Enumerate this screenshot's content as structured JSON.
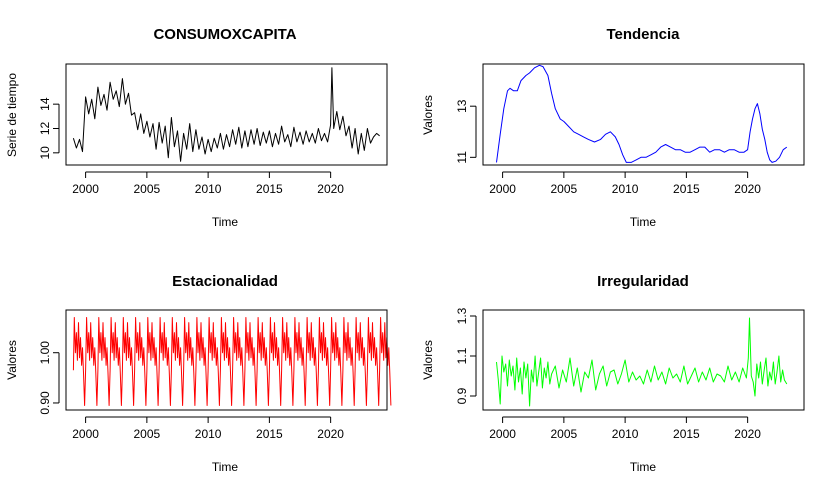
{
  "chart_data": [
    {
      "type": "line",
      "title": "CONSUMOXCAPITA",
      "xlabel": "Time",
      "ylabel": "Serie de tiempo",
      "color": "#000000",
      "xlim": [
        1998.4,
        2024.6
      ],
      "ylim": [
        9.0,
        17.3
      ],
      "xticks": [
        2000,
        2005,
        2010,
        2015,
        2020
      ],
      "yticks": [
        10,
        12,
        14
      ],
      "grid": false,
      "series": [
        {
          "x": [
            1999.0,
            1999.25,
            1999.5,
            1999.75,
            2000.0,
            2000.25,
            2000.5,
            2000.75,
            2001.0,
            2001.25,
            2001.5,
            2001.75,
            2002.0,
            2002.25,
            2002.5,
            2002.75,
            2003.0,
            2003.25,
            2003.5,
            2003.75,
            2004.0,
            2004.25,
            2004.5,
            2004.75,
            2005.0,
            2005.25,
            2005.5,
            2005.75,
            2006.0,
            2006.25,
            2006.5,
            2006.75,
            2007.0,
            2007.25,
            2007.5,
            2007.75,
            2008.0,
            2008.25,
            2008.5,
            2008.75,
            2009.0,
            2009.25,
            2009.5,
            2009.75,
            2010.0,
            2010.25,
            2010.5,
            2010.75,
            2011.0,
            2011.25,
            2011.5,
            2011.75,
            2012.0,
            2012.25,
            2012.5,
            2012.75,
            2013.0,
            2013.25,
            2013.5,
            2013.75,
            2014.0,
            2014.25,
            2014.5,
            2014.75,
            2015.0,
            2015.25,
            2015.5,
            2015.75,
            2016.0,
            2016.25,
            2016.5,
            2016.75,
            2017.0,
            2017.25,
            2017.5,
            2017.75,
            2018.0,
            2018.25,
            2018.5,
            2018.75,
            2019.0,
            2019.25,
            2019.5,
            2019.75,
            2020.0,
            2020.1,
            2020.25,
            2020.5,
            2020.75,
            2021.0,
            2021.25,
            2021.5,
            2021.75,
            2022.0,
            2022.25,
            2022.5,
            2022.75,
            2023.0,
            2023.25,
            2023.5,
            2023.75,
            2024.0
          ],
          "values": [
            11.2,
            10.4,
            11.1,
            10.1,
            14.6,
            13.2,
            14.4,
            12.8,
            15.4,
            13.9,
            14.8,
            13.5,
            15.8,
            14.4,
            15.1,
            13.8,
            16.1,
            14.0,
            14.9,
            13.1,
            13.3,
            11.9,
            13.2,
            11.6,
            12.6,
            11.3,
            12.4,
            10.3,
            12.5,
            10.8,
            12.2,
            9.6,
            12.9,
            10.5,
            11.8,
            9.3,
            11.6,
            10.3,
            12.4,
            10.1,
            11.9,
            10.3,
            11.3,
            9.9,
            11.1,
            10.1,
            11.2,
            10.4,
            11.6,
            10.3,
            11.5,
            10.5,
            11.9,
            10.7,
            12.1,
            10.4,
            11.8,
            10.5,
            11.9,
            10.7,
            12.0,
            10.6,
            11.7,
            10.8,
            11.8,
            10.5,
            11.6,
            10.7,
            12.2,
            10.9,
            11.5,
            10.5,
            12.1,
            10.9,
            11.7,
            10.7,
            11.8,
            10.9,
            11.6,
            10.8,
            12.0,
            11.0,
            11.6,
            10.9,
            12.3,
            17.0,
            12.0,
            13.4,
            11.9,
            13.0,
            11.4,
            12.2,
            10.4,
            12.0,
            9.9,
            11.6,
            10.2,
            12.0,
            10.8,
            11.3,
            11.6,
            11.4
          ]
        }
      ]
    },
    {
      "type": "line",
      "title": "Tendencia",
      "xlabel": "Time",
      "ylabel": "Valores",
      "color": "#0000ff",
      "xlim": [
        1998.4,
        2024.6
      ],
      "ylim": [
        10.7,
        14.65
      ],
      "xticks": [
        2000,
        2005,
        2010,
        2015,
        2020
      ],
      "yticks": [
        11,
        13
      ],
      "grid": false,
      "series": [
        {
          "x": [
            1999.5,
            1999.8,
            2000.1,
            2000.4,
            2000.6,
            2000.9,
            2001.2,
            2001.5,
            2001.9,
            2002.2,
            2002.6,
            2003.0,
            2003.3,
            2003.7,
            2004.0,
            2004.3,
            2004.7,
            2005.0,
            2005.4,
            2005.8,
            2006.2,
            2006.6,
            2007.0,
            2007.5,
            2008.0,
            2008.4,
            2008.8,
            2009.2,
            2009.5,
            2009.8,
            2010.1,
            2010.5,
            2010.9,
            2011.3,
            2011.7,
            2012.1,
            2012.5,
            2012.9,
            2013.3,
            2013.7,
            2014.1,
            2014.5,
            2014.9,
            2015.3,
            2015.7,
            2016.1,
            2016.5,
            2016.9,
            2017.3,
            2017.7,
            2018.1,
            2018.5,
            2018.9,
            2019.3,
            2019.7,
            2020.0,
            2020.2,
            2020.4,
            2020.6,
            2020.8,
            2021.0,
            2021.2,
            2021.4,
            2021.6,
            2021.8,
            2022.0,
            2022.3,
            2022.6,
            2022.9,
            2023.2
          ],
          "values": [
            10.8,
            11.9,
            12.9,
            13.6,
            13.7,
            13.6,
            13.6,
            14.0,
            14.2,
            14.3,
            14.5,
            14.6,
            14.55,
            14.2,
            13.5,
            12.9,
            12.5,
            12.4,
            12.2,
            12.0,
            11.9,
            11.8,
            11.7,
            11.6,
            11.7,
            11.9,
            12.0,
            11.8,
            11.5,
            11.1,
            10.8,
            10.8,
            10.9,
            11.0,
            11.0,
            11.1,
            11.2,
            11.4,
            11.5,
            11.4,
            11.3,
            11.3,
            11.2,
            11.2,
            11.3,
            11.4,
            11.4,
            11.2,
            11.3,
            11.3,
            11.2,
            11.3,
            11.3,
            11.2,
            11.2,
            11.3,
            12.0,
            12.5,
            12.9,
            13.1,
            12.7,
            12.1,
            11.7,
            11.2,
            10.9,
            10.8,
            10.85,
            11.0,
            11.3,
            11.4
          ]
        }
      ]
    },
    {
      "type": "line",
      "title": "Estacionalidad",
      "xlabel": "Time",
      "ylabel": "Valores",
      "color": "#ff0000",
      "xlim": [
        1998.4,
        2024.6
      ],
      "ylim": [
        0.886,
        1.085
      ],
      "xticks": [
        2000,
        2005,
        2010,
        2015,
        2020
      ],
      "yticks": [
        0.9,
        1.0
      ],
      "ytick_labels": [
        "0.90",
        "1.00"
      ],
      "grid": false,
      "period": 1,
      "start": 1999.0,
      "end": 2024.0,
      "pattern_x": [
        0.0,
        0.08,
        0.17,
        0.25,
        0.33,
        0.42,
        0.5,
        0.58,
        0.67,
        0.75,
        0.83,
        0.92
      ],
      "pattern_values": [
        0.965,
        1.07,
        1.0,
        1.04,
        0.985,
        1.06,
        0.99,
        1.03,
        0.975,
        1.01,
        0.96,
        0.895
      ]
    },
    {
      "type": "line",
      "title": "Irregularidad",
      "xlabel": "Time",
      "ylabel": "Valores",
      "color": "#00ff00",
      "xlim": [
        1998.4,
        2024.6
      ],
      "ylim": [
        0.83,
        1.33
      ],
      "xticks": [
        2000,
        2005,
        2010,
        2015,
        2020
      ],
      "yticks": [
        0.9,
        1.1,
        1.3
      ],
      "ytick_labels": [
        "0.9",
        "1.1",
        "1.3"
      ],
      "grid": false,
      "series": [
        {
          "x": [
            1999.5,
            1999.65,
            1999.8,
            1999.95,
            2000.1,
            2000.25,
            2000.4,
            2000.55,
            2000.7,
            2000.85,
            2001.0,
            2001.15,
            2001.3,
            2001.45,
            2001.6,
            2001.75,
            2001.9,
            2002.05,
            2002.2,
            2002.35,
            2002.5,
            2002.65,
            2002.8,
            2002.95,
            2003.1,
            2003.25,
            2003.4,
            2003.55,
            2003.7,
            2003.85,
            2004.0,
            2004.3,
            2004.6,
            2004.9,
            2005.2,
            2005.5,
            2005.8,
            2006.1,
            2006.4,
            2006.7,
            2007.0,
            2007.3,
            2007.6,
            2007.9,
            2008.2,
            2008.5,
            2008.8,
            2009.1,
            2009.4,
            2009.7,
            2010.0,
            2010.3,
            2010.6,
            2010.9,
            2011.2,
            2011.5,
            2011.8,
            2012.1,
            2012.4,
            2012.7,
            2013.0,
            2013.3,
            2013.6,
            2013.9,
            2014.2,
            2014.5,
            2014.8,
            2015.1,
            2015.4,
            2015.7,
            2016.0,
            2016.3,
            2016.6,
            2016.9,
            2017.2,
            2017.5,
            2017.8,
            2018.1,
            2018.4,
            2018.7,
            2019.0,
            2019.3,
            2019.6,
            2019.9,
            2020.05,
            2020.15,
            2020.3,
            2020.45,
            2020.6,
            2020.75,
            2020.9,
            2021.05,
            2021.2,
            2021.35,
            2021.5,
            2021.65,
            2021.8,
            2021.95,
            2022.1,
            2022.25,
            2022.4,
            2022.55,
            2022.7,
            2022.85,
            2023.0,
            2023.2
          ],
          "values": [
            1.07,
            0.98,
            0.86,
            1.1,
            1.02,
            1.06,
            0.95,
            1.08,
            1.0,
            1.05,
            0.93,
            1.09,
            0.97,
            1.04,
            0.91,
            1.07,
            0.99,
            1.06,
            0.85,
            1.03,
            0.97,
            1.1,
            0.95,
            1.02,
            1.09,
            0.94,
            1.04,
            0.99,
            1.07,
            0.96,
            1.01,
            1.05,
            0.94,
            1.03,
            0.97,
            1.09,
            0.95,
            1.04,
            0.92,
            1.02,
            0.99,
            1.08,
            0.93,
            1.01,
            1.05,
            0.95,
            1.02,
            1.03,
            0.96,
            1.01,
            1.08,
            0.97,
            1.02,
            0.98,
            1.0,
            0.96,
            1.03,
            0.97,
            1.05,
            0.98,
            1.02,
            0.96,
            1.04,
            0.99,
            1.01,
            0.97,
            1.05,
            0.96,
            1.0,
            1.04,
            0.97,
            1.02,
            0.98,
            1.04,
            0.97,
            1.01,
            1.0,
            0.97,
            1.05,
            0.98,
            1.02,
            0.97,
            1.04,
            0.99,
            1.09,
            1.29,
            1.0,
            0.97,
            0.9,
            1.06,
            0.99,
            1.07,
            0.96,
            1.03,
            1.09,
            0.95,
            1.02,
            0.98,
            1.07,
            0.96,
            1.02,
            1.1,
            0.97,
            1.03,
            0.98,
            0.96
          ]
        }
      ]
    }
  ]
}
